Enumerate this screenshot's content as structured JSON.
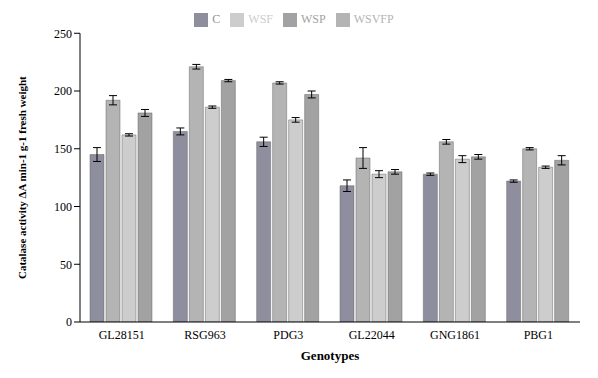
{
  "chart_data": {
    "type": "bar",
    "x_label": "Genotypes",
    "y_label": "Catalase activity ΔA min-1 g-1 fresh weight",
    "categories": [
      "GL28151",
      "RSG963",
      "PDG3",
      "GL22044",
      "GNG1861",
      "PBG1"
    ],
    "series": [
      {
        "name": "C",
        "color": "#8e8e9e",
        "values": [
          145,
          165,
          156,
          118,
          128,
          122
        ],
        "errors": [
          6,
          3,
          4,
          5,
          1,
          1
        ]
      },
      {
        "name": "WSVFP",
        "color": "#b4b4b4",
        "values": [
          192,
          221,
          207,
          142,
          156,
          150
        ],
        "errors": [
          4,
          2,
          1,
          9,
          2,
          1
        ]
      },
      {
        "name": "WSF",
        "color": "#cdcdcd",
        "values": [
          162,
          186,
          175,
          128,
          141,
          134
        ],
        "errors": [
          1,
          1,
          2,
          3,
          3,
          1
        ]
      },
      {
        "name": "WSP",
        "color": "#a2a2a2",
        "values": [
          181,
          209,
          197,
          130,
          143,
          140
        ],
        "errors": [
          3,
          1,
          3,
          2,
          2,
          4
        ]
      }
    ],
    "ylim": [
      0,
      250
    ],
    "yticks": [
      0,
      50,
      100,
      150,
      200,
      250
    ],
    "grid": false,
    "legend": "top"
  }
}
